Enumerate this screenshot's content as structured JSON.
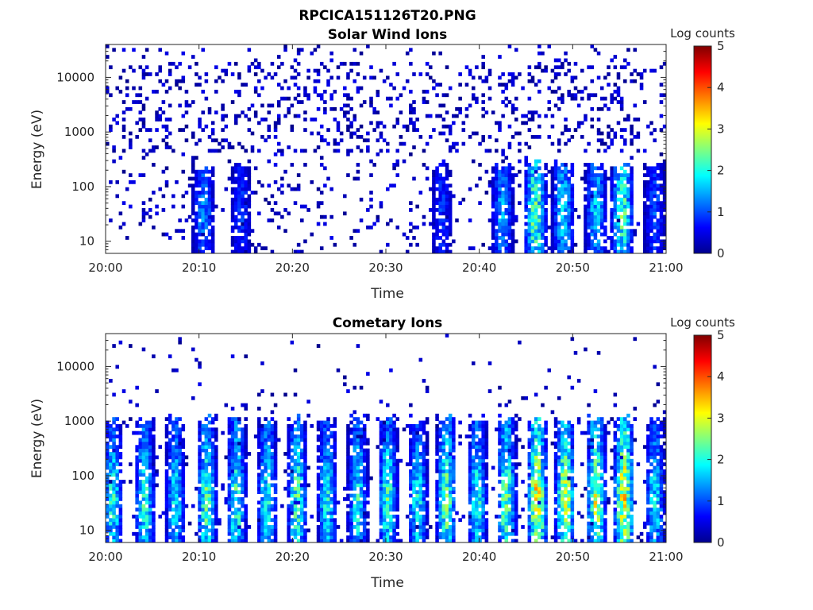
{
  "figure": {
    "title": "RPCICA151126T20.PNG"
  },
  "colorbar": {
    "label": "Log counts",
    "ticks": [
      "0",
      "1",
      "2",
      "3",
      "4",
      "5"
    ],
    "range": [
      0,
      5
    ],
    "colormap": "jet"
  },
  "chart_data": [
    {
      "type": "heatmap",
      "title": "Solar Wind Ions",
      "xlabel": "Time",
      "ylabel": "Energy (eV)",
      "xticks": [
        "20:00",
        "20:10",
        "20:20",
        "20:30",
        "20:40",
        "20:50",
        "21:00"
      ],
      "xlim_minutes": [
        0,
        60
      ],
      "yscale": "log",
      "yticks": [
        "10",
        "100",
        "1000",
        "10000"
      ],
      "ylim": [
        6,
        40000
      ],
      "zlabel": "Log counts",
      "zlim": [
        0,
        5
      ],
      "intensity_peaks": [
        {
          "t": 10.5,
          "z": 1.4
        },
        {
          "t": 14.5,
          "z": 1.0
        },
        {
          "t": 36.0,
          "z": 1.0
        },
        {
          "t": 42.5,
          "z": 1.6
        },
        {
          "t": 46.0,
          "z": 2.6
        },
        {
          "t": 49.0,
          "z": 1.9
        },
        {
          "t": 52.5,
          "z": 1.8
        },
        {
          "t": 55.3,
          "z": 2.5
        },
        {
          "t": 58.8,
          "z": 1.1
        }
      ]
    },
    {
      "type": "heatmap",
      "title": "Cometary Ions",
      "xlabel": "Time",
      "ylabel": "Energy (eV)",
      "xticks": [
        "20:00",
        "20:10",
        "20:20",
        "20:30",
        "20:40",
        "20:50",
        "21:00"
      ],
      "xlim_minutes": [
        0,
        60
      ],
      "yscale": "log",
      "yticks": [
        "10",
        "100",
        "1000",
        "10000"
      ],
      "ylim": [
        6,
        40000
      ],
      "zlabel": "Log counts",
      "zlim": [
        0,
        5
      ],
      "intensity_peaks": [
        {
          "t": 0.8,
          "z": 2.2
        },
        {
          "t": 4.2,
          "z": 2.3
        },
        {
          "t": 7.5,
          "z": 2.0
        },
        {
          "t": 10.8,
          "z": 2.5
        },
        {
          "t": 14.0,
          "z": 2.4
        },
        {
          "t": 17.3,
          "z": 2.2
        },
        {
          "t": 20.5,
          "z": 2.5
        },
        {
          "t": 23.7,
          "z": 2.1
        },
        {
          "t": 27.0,
          "z": 2.2
        },
        {
          "t": 30.2,
          "z": 2.4
        },
        {
          "t": 33.4,
          "z": 2.1
        },
        {
          "t": 36.5,
          "z": 2.7
        },
        {
          "t": 39.8,
          "z": 2.2
        },
        {
          "t": 42.9,
          "z": 2.7
        },
        {
          "t": 46.2,
          "z": 3.6
        },
        {
          "t": 49.2,
          "z": 3.2
        },
        {
          "t": 52.5,
          "z": 3.1
        },
        {
          "t": 55.5,
          "z": 3.6
        },
        {
          "t": 58.8,
          "z": 2.0
        }
      ]
    }
  ]
}
